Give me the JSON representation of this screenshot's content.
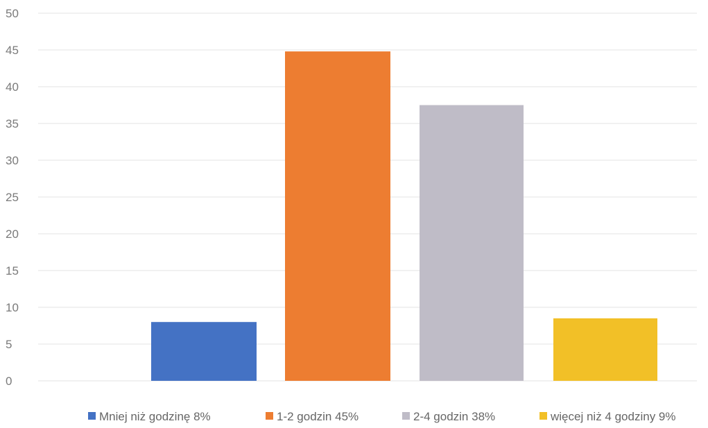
{
  "chart_data": {
    "type": "bar",
    "title": "",
    "xlabel": "",
    "ylabel": "",
    "ylim": [
      0,
      50
    ],
    "yticks": [
      0,
      5,
      10,
      15,
      20,
      25,
      30,
      35,
      40,
      45,
      50
    ],
    "grid": true,
    "legend_position": "bottom",
    "series": [
      {
        "name": "Mniej niż godzinę 8%",
        "value": 8,
        "color": "#4472C4"
      },
      {
        "name": "1-2 godzin 45%",
        "value": 44.8,
        "color": "#ED7D31"
      },
      {
        "name": "2-4 godzin 38%",
        "value": 37.5,
        "color": "#BFBCC7"
      },
      {
        "name": "więcej niż 4 godziny 9%",
        "value": 8.5,
        "color": "#F2C027"
      }
    ]
  }
}
